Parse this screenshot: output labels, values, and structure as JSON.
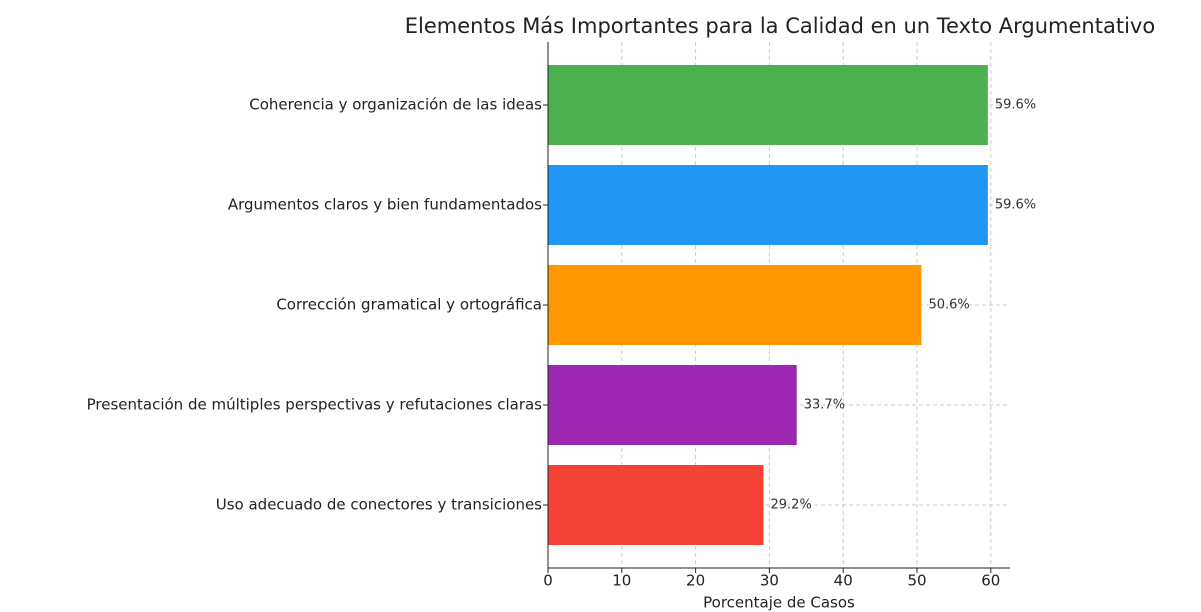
{
  "chart_data": {
    "type": "barh",
    "title": "Elementos Más Importantes para la Calidad en un Texto Argumentativo",
    "x_label": "Porcentaje de Casos",
    "categories": [
      "Coherencia y organización de las ideas",
      "Argumentos claros y bien fundamentados",
      "Corrección gramatical y ortográfica",
      "Presentación de múltiples perspectivas y refutaciones claras",
      "Uso adecuado de conectores y transiciones"
    ],
    "values": [
      59.6,
      59.6,
      50.6,
      33.7,
      29.2
    ],
    "value_labels": [
      "59.6%",
      "59.6%",
      "50.6%",
      "33.7%",
      "29.2%"
    ],
    "colors": [
      "#4caf50",
      "#2196f3",
      "#ff9800",
      "#9c27b0",
      "#f44336"
    ],
    "xlim": [
      0,
      62.6
    ],
    "xticks": [
      0,
      10,
      20,
      30,
      40,
      50,
      60
    ],
    "grid": true
  }
}
